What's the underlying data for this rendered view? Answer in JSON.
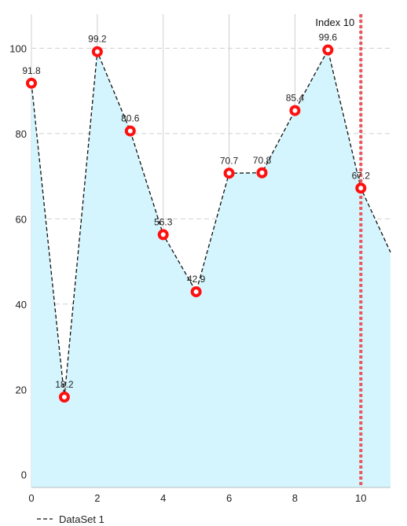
{
  "chart_data": {
    "type": "area",
    "series": [
      {
        "name": "DataSet 1",
        "x": [
          0,
          1,
          2,
          3,
          4,
          5,
          6,
          7,
          8,
          9,
          10,
          11
        ],
        "values": [
          91.8,
          18.2,
          99.2,
          80.6,
          56.3,
          42.9,
          70.7,
          70.8,
          85.4,
          99.6,
          67.2,
          50.5
        ],
        "point_labels": [
          "91.8",
          "18.2",
          "99.2",
          "80.6",
          "56.3",
          "42.9",
          "70.7",
          "70.8",
          "85.4",
          "99.6",
          "67.2",
          ""
        ]
      }
    ],
    "xlim": [
      0,
      10.9
    ],
    "ylim": [
      -3,
      108
    ],
    "x_ticks": [
      {
        "value": 0,
        "label": "0"
      },
      {
        "value": 2,
        "label": "2"
      },
      {
        "value": 4,
        "label": "4"
      },
      {
        "value": 6,
        "label": "6"
      },
      {
        "value": 8,
        "label": "8"
      },
      {
        "value": 10,
        "label": "10"
      }
    ],
    "y_ticks": [
      {
        "value": 0,
        "label": "0"
      },
      {
        "value": 20,
        "label": "20"
      },
      {
        "value": 40,
        "label": "40"
      },
      {
        "value": 60,
        "label": "60"
      },
      {
        "value": 80,
        "label": "80"
      },
      {
        "value": 100,
        "label": "100"
      }
    ],
    "limit_line": {
      "x": 10,
      "label": "Index 10"
    },
    "grid": {
      "horizontal": "dashed",
      "vertical": "solid"
    },
    "legend": {
      "position": "bottom-left",
      "label": "DataSet 1"
    },
    "colors": {
      "line": "#111111",
      "fill": "#d4f5fd",
      "point": "#ff1010",
      "limit_line": "#e8585d",
      "grid": "#d0d0d0"
    }
  }
}
